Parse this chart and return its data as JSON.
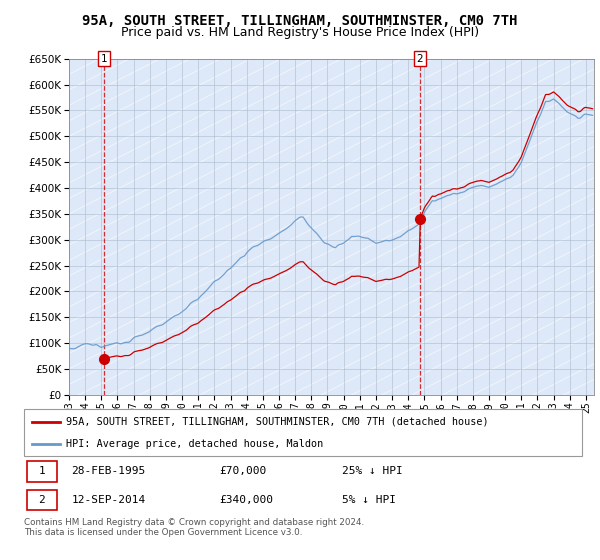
{
  "title": "95A, SOUTH STREET, TILLINGHAM, SOUTHMINSTER, CM0 7TH",
  "subtitle": "Price paid vs. HM Land Registry's House Price Index (HPI)",
  "ylim": [
    0,
    650000
  ],
  "yticks": [
    0,
    50000,
    100000,
    150000,
    200000,
    250000,
    300000,
    350000,
    400000,
    450000,
    500000,
    550000,
    600000,
    650000
  ],
  "xlim_start": 1993.0,
  "xlim_end": 2025.5,
  "transaction1_date": 1995.16,
  "transaction1_price": 70000,
  "transaction2_date": 2014.71,
  "transaction2_price": 340000,
  "legend_property": "95A, SOUTH STREET, TILLINGHAM, SOUTHMINSTER, CM0 7TH (detached house)",
  "legend_hpi": "HPI: Average price, detached house, Maldon",
  "info1_date": "28-FEB-1995",
  "info1_price": "£70,000",
  "info1_hpi": "25% ↓ HPI",
  "info2_date": "12-SEP-2014",
  "info2_price": "£340,000",
  "info2_hpi": "5% ↓ HPI",
  "footer": "Contains HM Land Registry data © Crown copyright and database right 2024.\nThis data is licensed under the Open Government Licence v3.0.",
  "property_color": "#cc0000",
  "hpi_color": "#6699cc",
  "bg_color": "#dde8f8",
  "hatch_color": "#c8d8ee",
  "grid_color": "#aabbcc",
  "title_fontsize": 10,
  "subtitle_fontsize": 9,
  "tick_fontsize": 7.5
}
